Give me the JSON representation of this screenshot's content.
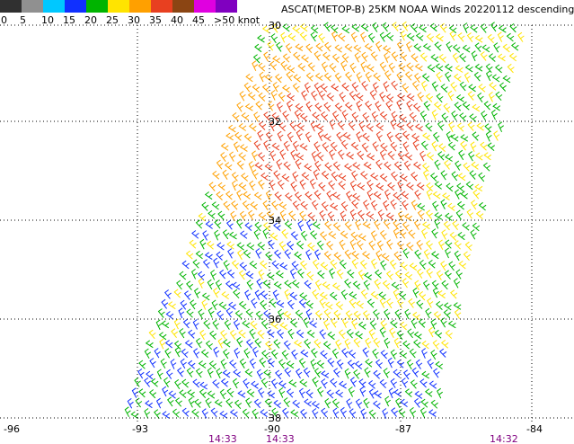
{
  "title": "ASCAT(METOP-B) 25KM NOAA Winds 20220112 descending",
  "colorbar": [
    {
      "label": "0",
      "color": "#303030"
    },
    {
      "label": "5",
      "color": "#909090"
    },
    {
      "label": "10",
      "color": "#00c8ff"
    },
    {
      "label": "15",
      "color": "#1030ff"
    },
    {
      "label": "20",
      "color": "#00b400"
    },
    {
      "label": "25",
      "color": "#ffe400"
    },
    {
      "label": "30",
      "color": "#ffa000"
    },
    {
      "label": "35",
      "color": "#e84020"
    },
    {
      "label": "40",
      "color": "#8b4513"
    },
    {
      "label": "45",
      "color": "#e000e0"
    },
    {
      "label": ">50 knot",
      "color": "#8000c0"
    }
  ],
  "lon_labels": [
    "-96",
    "-93",
    "-90",
    "-87",
    "-84"
  ],
  "lat_labels": [
    "30",
    "32",
    "34",
    "36",
    "38"
  ],
  "time_labels": [
    "14:33",
    "14:33",
    "14:32"
  ]
}
